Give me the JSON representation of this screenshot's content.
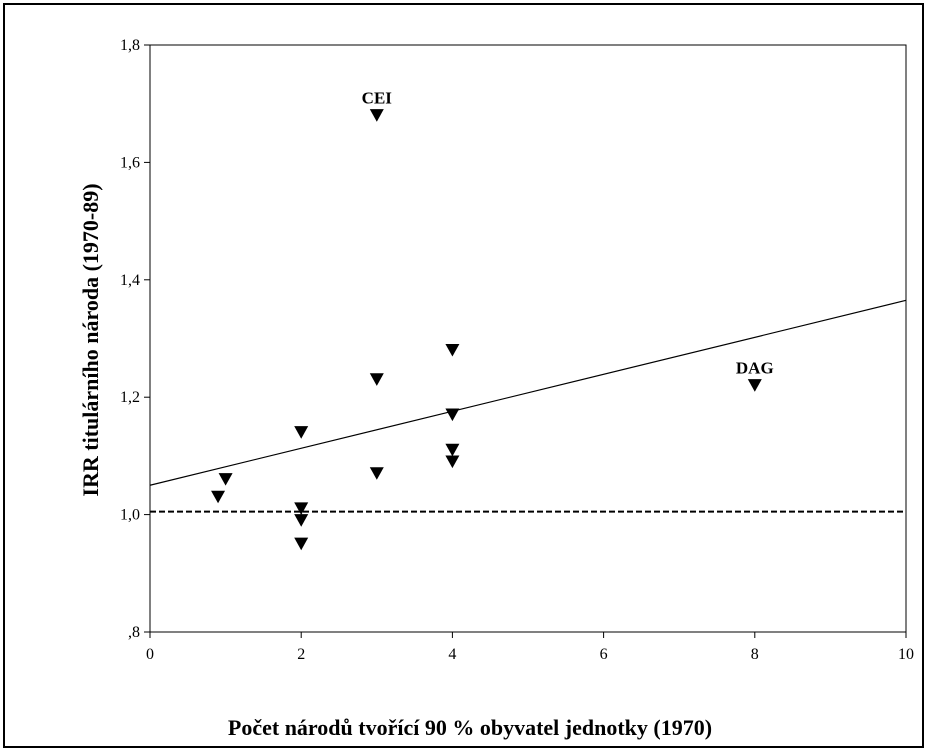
{
  "chart_data": {
    "type": "scatter",
    "title": "",
    "xlabel": "Počet národů tvořící 90 % obyvatel jednotky (1970)",
    "ylabel": "IRR titulárního národa (1970-89)",
    "xlim": [
      0,
      10
    ],
    "ylim": [
      0.8,
      1.8
    ],
    "xticks": [
      0,
      2,
      4,
      6,
      8,
      10
    ],
    "xtick_labels": [
      "0",
      "2",
      "4",
      "6",
      "8",
      "10"
    ],
    "yticks": [
      0.8,
      1.0,
      1.2,
      1.4,
      1.6,
      1.8
    ],
    "ytick_labels": [
      ",8",
      "1,0",
      "1,2",
      "1,4",
      "1,6",
      "1,8"
    ],
    "grid": false,
    "marker": "down-triangle",
    "points": [
      {
        "x": 0.9,
        "y": 1.03
      },
      {
        "x": 1.0,
        "y": 1.06
      },
      {
        "x": 2.0,
        "y": 1.14
      },
      {
        "x": 2.0,
        "y": 1.01
      },
      {
        "x": 2.0,
        "y": 0.99
      },
      {
        "x": 2.0,
        "y": 0.95
      },
      {
        "x": 3.0,
        "y": 1.68
      },
      {
        "x": 3.0,
        "y": 1.23
      },
      {
        "x": 3.0,
        "y": 1.07
      },
      {
        "x": 4.0,
        "y": 1.28
      },
      {
        "x": 4.0,
        "y": 1.17
      },
      {
        "x": 4.0,
        "y": 1.11
      },
      {
        "x": 4.0,
        "y": 1.09
      },
      {
        "x": 8.0,
        "y": 1.22
      }
    ],
    "annotations": [
      {
        "text": "CEI",
        "x": 3.0,
        "y": 1.68
      },
      {
        "text": "DAG",
        "x": 8.0,
        "y": 1.22
      }
    ],
    "fit_line": {
      "x": [
        0,
        10
      ],
      "y": [
        1.05,
        1.365
      ]
    },
    "reference_line": {
      "y": 1.005,
      "style": "dashed"
    }
  }
}
